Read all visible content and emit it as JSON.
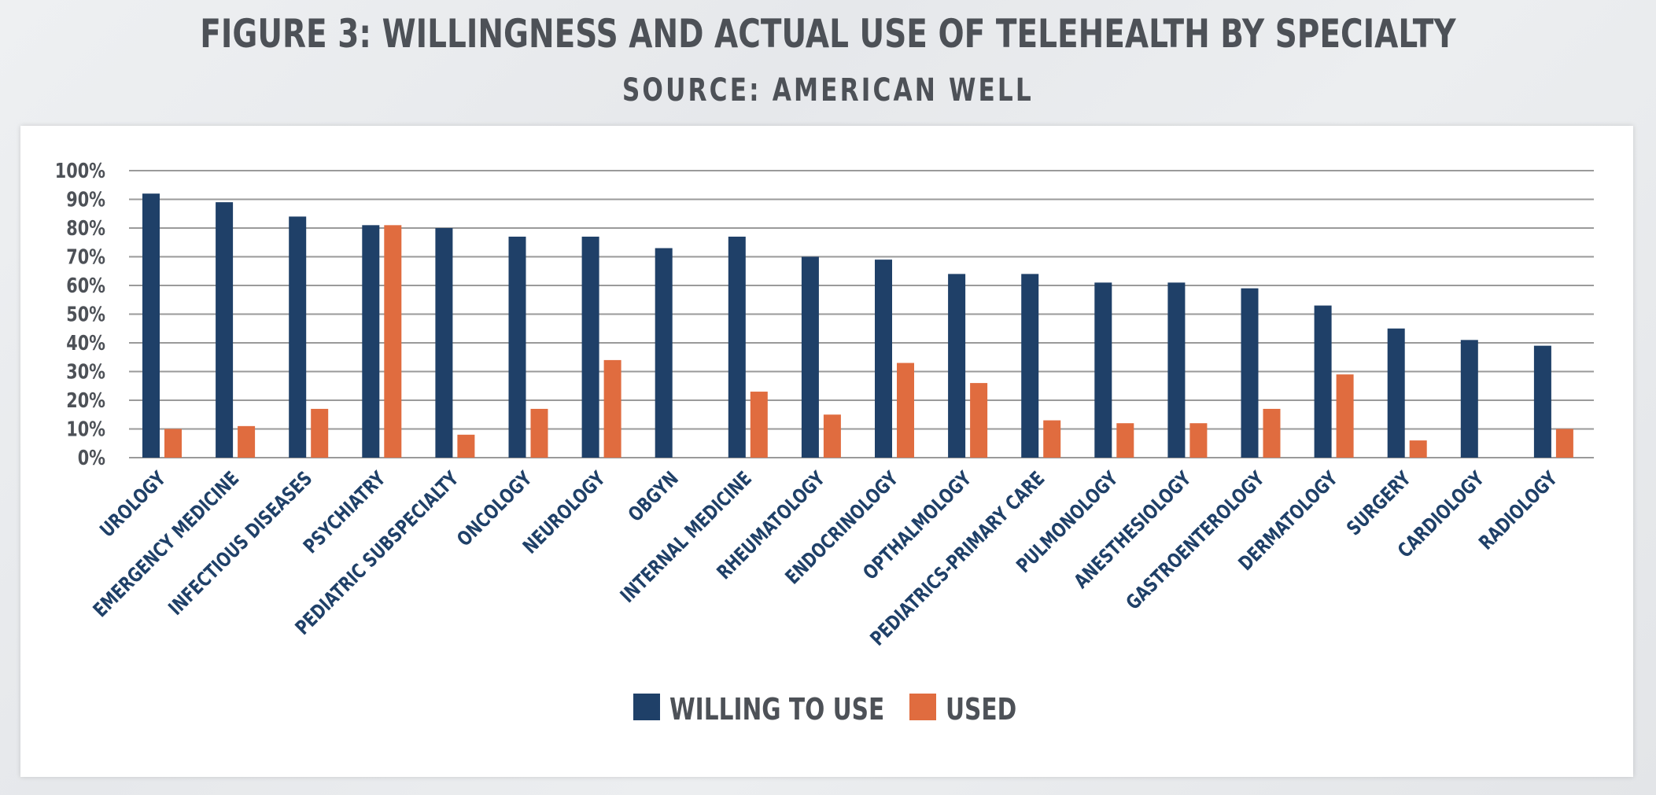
{
  "title": "FIGURE 3: WILLINGNESS AND ACTUAL USE OF TELEHEALTH BY SPECIALTY",
  "subtitle": "SOURCE: AMERICAN WELL",
  "colors": {
    "willing": "#1f4068",
    "used": "#e06c3f",
    "grid": "#9a9a9a",
    "tick_text": "#4d5157",
    "category_text": "#1f4068"
  },
  "chart_data": {
    "type": "bar",
    "title": "FIGURE 3: WILLINGNESS AND ACTUAL USE OF TELEHEALTH BY SPECIALTY",
    "subtitle": "SOURCE: AMERICAN WELL",
    "xlabel": "",
    "ylabel": "",
    "ylim": [
      0,
      100
    ],
    "yticks": [
      "0%",
      "10%",
      "20%",
      "30%",
      "40%",
      "50%",
      "60%",
      "70%",
      "80%",
      "90%",
      "100%"
    ],
    "grid": true,
    "legend_position": "bottom",
    "categories": [
      "UROLOGY",
      "EMERGENCY MEDICINE",
      "INFECTIOUS DISEASES",
      "PSYCHIATRY",
      "PEDIATRIC SUBSPECIALTY",
      "ONCOLOGY",
      "NEUROLOGY",
      "OBGYN",
      "INTERNAL MEDICINE",
      "RHEUMATOLOGY",
      "ENDOCRINOLOGY",
      "OPTHALMOLOGY",
      "PEDIATRICS-PRIMARY CARE",
      "PULMONOLOGY",
      "ANESTHESIOLOGY",
      "GASTROENTEROLOGY",
      "DERMATOLOGY",
      "SURGERY",
      "CARDIOLOGY",
      "RADIOLOGY"
    ],
    "series": [
      {
        "name": "WILLING TO USE",
        "values": [
          92,
          89,
          84,
          81,
          80,
          77,
          77,
          73,
          77,
          70,
          69,
          64,
          64,
          61,
          61,
          59,
          53,
          45,
          41,
          39
        ]
      },
      {
        "name": "USED",
        "values": [
          10,
          11,
          17,
          81,
          8,
          17,
          34,
          0,
          23,
          15,
          33,
          26,
          13,
          12,
          12,
          17,
          29,
          6,
          0,
          10
        ]
      }
    ]
  }
}
